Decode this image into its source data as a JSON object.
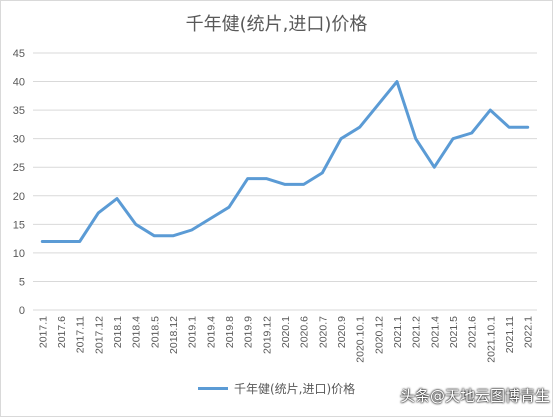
{
  "chart_data": {
    "type": "line",
    "title": "千年健(统片,进口)价格",
    "categories": [
      "2017.1",
      "2017.6",
      "2017.11",
      "2017.12",
      "2018.1",
      "2018.4",
      "2018.5",
      "2018.12",
      "2019.1",
      "2019.4",
      "2019.8",
      "2019.9",
      "2019.12",
      "2020.1",
      "2020.6",
      "2020.7",
      "2020.9",
      "2020.10.1",
      "2020.12",
      "2021.1",
      "2021.2",
      "2021.4",
      "2021.5",
      "2021.6",
      "2021.10.1",
      "2021.11",
      "2022.1"
    ],
    "series": [
      {
        "name": "千年健(统片,进口)价格",
        "values": [
          12,
          12,
          12,
          17,
          19.5,
          15,
          13,
          13,
          14,
          16,
          18,
          23,
          23,
          22,
          22,
          24,
          30,
          32,
          36,
          40,
          30,
          25,
          30,
          31,
          35,
          32,
          32
        ],
        "color": "#5b9bd5"
      }
    ],
    "ylim": [
      0,
      45
    ],
    "yticks": [
      0,
      5,
      10,
      15,
      20,
      25,
      30,
      35,
      40,
      45
    ],
    "grid": true,
    "legend": "bottom"
  },
  "watermark": "头条@天地云图博青生"
}
